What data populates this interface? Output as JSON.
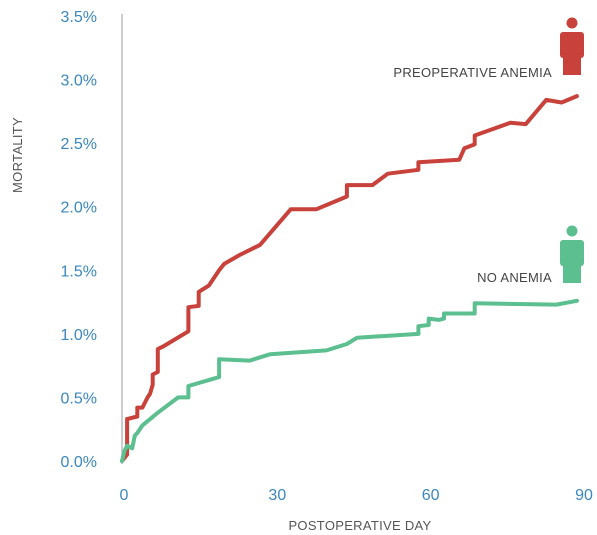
{
  "chart_data": {
    "type": "line",
    "xlabel": "POSTOPERATIVE DAY",
    "ylabel": "MORTALITY",
    "xlim": [
      0,
      90
    ],
    "ylim": [
      0,
      3.5
    ],
    "x_ticks": [
      {
        "value": 0,
        "label": "0"
      },
      {
        "value": 30,
        "label": "30"
      },
      {
        "value": 60,
        "label": "60"
      },
      {
        "value": 90,
        "label": "90"
      }
    ],
    "y_ticks": [
      {
        "value": 0,
        "label": "0.0%"
      },
      {
        "value": 0.5,
        "label": "0.5%"
      },
      {
        "value": 1.0,
        "label": "1.0%"
      },
      {
        "value": 1.5,
        "label": "1.5%"
      },
      {
        "value": 2.0,
        "label": "2.0%"
      },
      {
        "value": 2.5,
        "label": "2.5%"
      },
      {
        "value": 3.0,
        "label": "3.0%"
      },
      {
        "value": 3.5,
        "label": "3.5%"
      }
    ],
    "grid": false,
    "legend": "inline labels near line ends",
    "series": [
      {
        "name": "PREOPERATIVE ANEMIA",
        "color": "#c8413b",
        "icon": "person-icon",
        "x": [
          0,
          1,
          1,
          3,
          3,
          4,
          5,
          5.5,
          6,
          6,
          7,
          7,
          8,
          13,
          13,
          15,
          15,
          17,
          19,
          20,
          23,
          27,
          33,
          38,
          44,
          44,
          49,
          52,
          58,
          58,
          66,
          67,
          69,
          69,
          76,
          79,
          83,
          86,
          89
        ],
        "y": [
          0.0,
          0.05,
          0.33,
          0.35,
          0.42,
          0.42,
          0.5,
          0.53,
          0.6,
          0.68,
          0.7,
          0.88,
          0.9,
          1.02,
          1.21,
          1.22,
          1.33,
          1.38,
          1.5,
          1.55,
          1.62,
          1.7,
          1.98,
          1.98,
          2.08,
          2.17,
          2.17,
          2.26,
          2.29,
          2.35,
          2.37,
          2.46,
          2.49,
          2.56,
          2.66,
          2.65,
          2.84,
          2.82,
          2.87
        ]
      },
      {
        "name": "NO ANEMIA",
        "color": "#5cbf8f",
        "icon": "person-icon",
        "x": [
          0,
          0.5,
          1,
          2,
          2.5,
          3,
          4,
          7,
          11,
          13,
          13,
          19,
          19,
          25,
          29,
          40,
          44,
          46,
          58,
          58,
          60,
          60,
          62,
          63,
          63,
          69,
          69,
          85,
          89
        ],
        "y": [
          0.0,
          0.08,
          0.12,
          0.1,
          0.2,
          0.22,
          0.28,
          0.38,
          0.5,
          0.5,
          0.59,
          0.66,
          0.8,
          0.79,
          0.84,
          0.87,
          0.92,
          0.97,
          1.0,
          1.06,
          1.07,
          1.12,
          1.11,
          1.12,
          1.16,
          1.16,
          1.24,
          1.23,
          1.26
        ]
      }
    ]
  }
}
